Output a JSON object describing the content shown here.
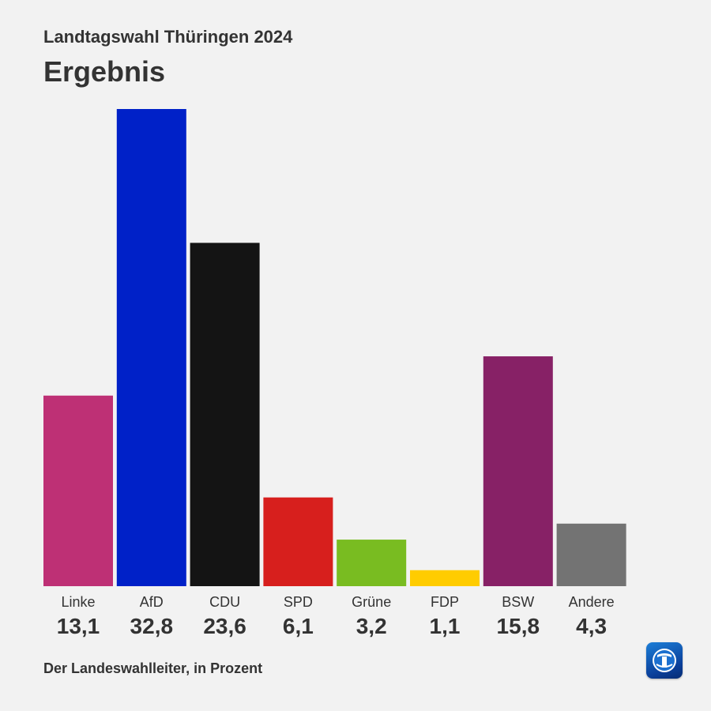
{
  "header": {
    "supertitle": "Landtagswahl Thüringen 2024",
    "title": "Ergebnis"
  },
  "footer": {
    "source": "Der Landeswahlleiter, in Prozent"
  },
  "logo": {
    "icon": "tagesschau-logo-icon"
  },
  "chart_data": {
    "type": "bar",
    "title": "",
    "xlabel": "",
    "ylabel": "",
    "ylim": [
      0,
      34
    ],
    "grid": false,
    "categories": [
      "Linke",
      "AfD",
      "CDU",
      "SPD",
      "Grüne",
      "FDP",
      "BSW",
      "Andere"
    ],
    "values": [
      13.1,
      32.8,
      23.6,
      6.1,
      3.2,
      1.1,
      15.8,
      4.3
    ],
    "value_labels": [
      "13,1",
      "32,8",
      "23,6",
      "6,1",
      "3,2",
      "1,1",
      "15,8",
      "4,3"
    ],
    "colors": [
      "#be3075",
      "#0021c8",
      "#141414",
      "#d71f1d",
      "#79bc21",
      "#ffcc00",
      "#872166",
      "#737373"
    ]
  }
}
